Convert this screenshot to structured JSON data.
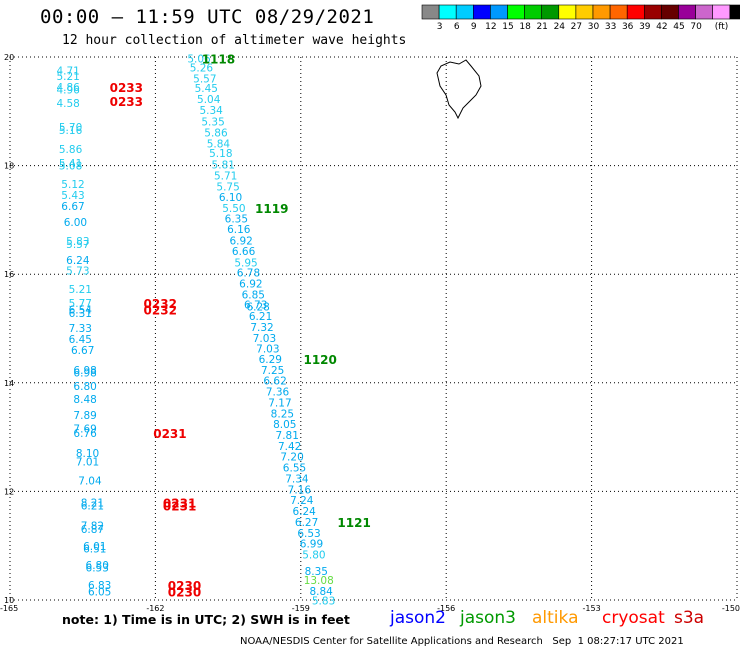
{
  "header": {
    "title": "00:00 – 11:59 UTC 08/29/2021",
    "subtitle": "12 hour collection of altimeter wave heights"
  },
  "colorbar": {
    "colors": [
      "#888888",
      "#00ffff",
      "#00ccff",
      "#0000ff",
      "#0099ff",
      "#00ff00",
      "#00cc00",
      "#009900",
      "#ffff00",
      "#ffcc00",
      "#ff9900",
      "#ff6600",
      "#ff0000",
      "#990000",
      "#660000",
      "#990099",
      "#cc66cc",
      "#ff99ff",
      "#000000"
    ],
    "ticks": [
      "3",
      "6",
      "9",
      "12",
      "15",
      "18",
      "21",
      "24",
      "27",
      "30",
      "33",
      "36",
      "39",
      "42",
      "45",
      "70"
    ],
    "unit": "(ft)"
  },
  "footer": {
    "note": "note: 1) Time is in UTC; 2) SWH is in feet",
    "credit": "NOAA/NESDIS Center for Satellite Applications and Research   Sep  1 08:27:17 UTC 2021",
    "legend": [
      {
        "name": "jason2",
        "color": "#0000ff"
      },
      {
        "name": "jason3",
        "color": "#009900"
      },
      {
        "name": "altika",
        "color": "#ff9900"
      },
      {
        "name": "cryosat",
        "color": "#ff0000"
      },
      {
        "name": "s3a",
        "color": "#cc0000"
      }
    ]
  },
  "chart_data": {
    "type": "scatter",
    "title": "00:00 – 11:59 UTC 08/29/2021",
    "subtitle": "12 hour collection of altimeter wave heights",
    "xlim": [
      -165,
      -150
    ],
    "ylim": [
      10,
      20
    ],
    "x_ticks": [
      "-165",
      "-162",
      "-159",
      "-156",
      "-153",
      "-150"
    ],
    "y_ticks": [
      "20",
      "18",
      "16",
      "14",
      "12",
      "10"
    ],
    "x_tick_values": [
      -165,
      -162,
      -159,
      -156,
      -153,
      -150
    ],
    "y_tick_values": [
      20,
      18,
      16,
      14,
      12,
      10
    ],
    "grid": true,
    "series": [
      {
        "name": "jason3",
        "points": [
          {
            "x": -161.1,
            "y": 19.95,
            "v": "5.06"
          },
          {
            "x": -161.05,
            "y": 19.79,
            "v": "5.26"
          },
          {
            "x": -160.98,
            "y": 19.59,
            "v": "5.57"
          },
          {
            "x": -160.95,
            "y": 19.41,
            "v": "5.45"
          },
          {
            "x": -160.9,
            "y": 19.21,
            "v": "5.04"
          },
          {
            "x": -160.85,
            "y": 19.01,
            "v": "5.34"
          },
          {
            "x": -160.81,
            "y": 18.79,
            "v": "5.35"
          },
          {
            "x": -160.75,
            "y": 18.59,
            "v": "5.86"
          },
          {
            "x": -160.7,
            "y": 18.39,
            "v": "5.84"
          },
          {
            "x": -160.65,
            "y": 18.21,
            "v": "5.18"
          },
          {
            "x": -160.6,
            "y": 18.0,
            "v": "5.81"
          },
          {
            "x": -160.55,
            "y": 17.8,
            "v": "5.71"
          },
          {
            "x": -160.5,
            "y": 17.6,
            "v": "5.75"
          },
          {
            "x": -160.45,
            "y": 17.4,
            "v": "6.10"
          },
          {
            "x": -160.38,
            "y": 17.2,
            "v": "5.50"
          },
          {
            "x": -160.33,
            "y": 17.01,
            "v": "6.35"
          },
          {
            "x": -160.28,
            "y": 16.81,
            "v": "6.16"
          },
          {
            "x": -160.23,
            "y": 16.6,
            "v": "6.92"
          },
          {
            "x": -160.18,
            "y": 16.41,
            "v": "6.66"
          },
          {
            "x": -160.13,
            "y": 16.2,
            "v": "5.95"
          },
          {
            "x": -160.08,
            "y": 16.01,
            "v": "6.78"
          },
          {
            "x": -160.03,
            "y": 15.81,
            "v": "6.92"
          },
          {
            "x": -159.98,
            "y": 15.61,
            "v": "6.85"
          },
          {
            "x": -159.93,
            "y": 15.42,
            "v": "6.73"
          },
          {
            "x": -159.88,
            "y": 15.39,
            "v": "6.28"
          },
          {
            "x": -159.83,
            "y": 15.21,
            "v": "6.21"
          },
          {
            "x": -159.8,
            "y": 15.01,
            "v": "7.32"
          },
          {
            "x": -159.75,
            "y": 14.81,
            "v": "7.03"
          },
          {
            "x": -159.68,
            "y": 14.61,
            "v": "7.03"
          },
          {
            "x": -159.63,
            "y": 14.42,
            "v": "6.29"
          },
          {
            "x": -159.58,
            "y": 14.22,
            "v": "7.25"
          },
          {
            "x": -159.53,
            "y": 14.02,
            "v": "6.62"
          },
          {
            "x": -159.48,
            "y": 13.82,
            "v": "7.36"
          },
          {
            "x": -159.43,
            "y": 13.62,
            "v": "7.17"
          },
          {
            "x": -159.38,
            "y": 13.42,
            "v": "8.25"
          },
          {
            "x": -159.33,
            "y": 13.22,
            "v": "8.05"
          },
          {
            "x": -159.28,
            "y": 13.02,
            "v": "7.81"
          },
          {
            "x": -159.23,
            "y": 12.82,
            "v": "7.42"
          },
          {
            "x": -159.18,
            "y": 12.62,
            "v": "7.20"
          },
          {
            "x": -159.13,
            "y": 12.42,
            "v": "6.55"
          },
          {
            "x": -159.08,
            "y": 12.22,
            "v": "7.34"
          },
          {
            "x": -159.03,
            "y": 12.02,
            "v": "7.16"
          },
          {
            "x": -158.98,
            "y": 11.82,
            "v": "7.24"
          },
          {
            "x": -158.93,
            "y": 11.62,
            "v": "6.24"
          },
          {
            "x": -158.88,
            "y": 11.42,
            "v": "6.27"
          },
          {
            "x": -158.83,
            "y": 11.22,
            "v": "6.53"
          },
          {
            "x": -158.78,
            "y": 11.02,
            "v": "6.99"
          },
          {
            "x": -158.73,
            "y": 10.82,
            "v": "5.80"
          },
          {
            "x": -158.68,
            "y": 10.52,
            "v": "8.35"
          },
          {
            "x": -158.63,
            "y": 10.35,
            "v": "13.08"
          },
          {
            "x": -158.58,
            "y": 10.15,
            "v": "8.84"
          },
          {
            "x": -158.53,
            "y": 9.97,
            "v": "5.83"
          }
        ],
        "time_labels": [
          {
            "x": -160.7,
            "y": 19.95,
            "t": "1118"
          },
          {
            "x": -159.6,
            "y": 17.2,
            "t": "1119"
          },
          {
            "x": -158.6,
            "y": 14.42,
            "t": "1120"
          },
          {
            "x": -157.9,
            "y": 11.42,
            "t": "1121"
          }
        ]
      },
      {
        "name": "cryosat",
        "points": [
          {
            "x": -163.8,
            "y": 19.73,
            "v": "4.71"
          },
          {
            "x": -163.8,
            "y": 19.63,
            "v": "5.21"
          },
          {
            "x": -163.8,
            "y": 19.43,
            "v": "4.86"
          },
          {
            "x": -163.8,
            "y": 19.38,
            "v": "4.96"
          },
          {
            "x": -163.8,
            "y": 19.13,
            "v": "4.58"
          },
          {
            "x": -163.75,
            "y": 18.69,
            "v": "5.70"
          },
          {
            "x": -163.75,
            "y": 18.64,
            "v": "5.16"
          },
          {
            "x": -163.75,
            "y": 18.29,
            "v": "5.86"
          },
          {
            "x": -163.75,
            "y": 18.03,
            "v": "5.41"
          },
          {
            "x": -163.75,
            "y": 17.98,
            "v": "5.08"
          },
          {
            "x": -163.7,
            "y": 17.64,
            "v": "5.12"
          },
          {
            "x": -163.7,
            "y": 17.44,
            "v": "5.43"
          },
          {
            "x": -163.7,
            "y": 17.24,
            "v": "6.67"
          },
          {
            "x": -163.65,
            "y": 16.94,
            "v": "6.00"
          },
          {
            "x": -163.6,
            "y": 16.59,
            "v": "5.83"
          },
          {
            "x": -163.6,
            "y": 16.54,
            "v": "5.57"
          },
          {
            "x": -163.6,
            "y": 16.24,
            "v": "6.24"
          },
          {
            "x": -163.6,
            "y": 16.05,
            "v": "5.73"
          },
          {
            "x": -163.55,
            "y": 15.71,
            "v": "5.21"
          },
          {
            "x": -163.55,
            "y": 15.45,
            "v": "5.77"
          },
          {
            "x": -163.55,
            "y": 15.33,
            "v": "6.54"
          },
          {
            "x": -163.55,
            "y": 15.27,
            "v": "6.31"
          },
          {
            "x": -163.55,
            "y": 14.99,
            "v": "7.33"
          },
          {
            "x": -163.55,
            "y": 14.79,
            "v": "6.45"
          },
          {
            "x": -163.5,
            "y": 14.59,
            "v": "6.67"
          },
          {
            "x": -163.45,
            "y": 14.22,
            "v": "6.98"
          },
          {
            "x": -163.45,
            "y": 14.17,
            "v": "6.98"
          },
          {
            "x": -163.45,
            "y": 13.92,
            "v": "6.80"
          },
          {
            "x": -163.45,
            "y": 13.68,
            "v": "8.48"
          },
          {
            "x": -163.45,
            "y": 13.39,
            "v": "7.89"
          },
          {
            "x": -163.45,
            "y": 13.14,
            "v": "7.69"
          },
          {
            "x": -163.45,
            "y": 13.06,
            "v": "6.76"
          },
          {
            "x": -163.4,
            "y": 12.69,
            "v": "8.10"
          },
          {
            "x": -163.4,
            "y": 12.53,
            "v": "7.01"
          },
          {
            "x": -163.35,
            "y": 12.18,
            "v": "7.04"
          },
          {
            "x": -163.3,
            "y": 11.78,
            "v": "8.21"
          },
          {
            "x": -163.3,
            "y": 11.72,
            "v": "6.21"
          },
          {
            "x": -163.3,
            "y": 11.35,
            "v": "7.82"
          },
          {
            "x": -163.3,
            "y": 11.29,
            "v": "6.87"
          },
          {
            "x": -163.25,
            "y": 10.98,
            "v": "6.01"
          },
          {
            "x": -163.25,
            "y": 10.93,
            "v": "6.51"
          },
          {
            "x": -163.2,
            "y": 10.63,
            "v": "6.80"
          },
          {
            "x": -163.2,
            "y": 10.58,
            "v": "6.53"
          },
          {
            "x": -163.15,
            "y": 10.26,
            "v": "6.83"
          },
          {
            "x": -163.15,
            "y": 10.14,
            "v": "6.05"
          }
        ],
        "time_labels": [
          {
            "x": -162.6,
            "y": 19.43,
            "t": "0233"
          },
          {
            "x": -162.6,
            "y": 19.17,
            "t": "0233"
          },
          {
            "x": -161.9,
            "y": 15.45,
            "t": "0232"
          },
          {
            "x": -161.9,
            "y": 15.33,
            "t": "0232"
          },
          {
            "x": -161.7,
            "y": 13.06,
            "t": "0231"
          },
          {
            "x": -161.5,
            "y": 11.78,
            "t": "0231"
          },
          {
            "x": -161.5,
            "y": 11.72,
            "t": "0231"
          },
          {
            "x": -161.4,
            "y": 10.26,
            "t": "0230"
          },
          {
            "x": -161.4,
            "y": 10.14,
            "t": "0230"
          }
        ]
      }
    ]
  }
}
